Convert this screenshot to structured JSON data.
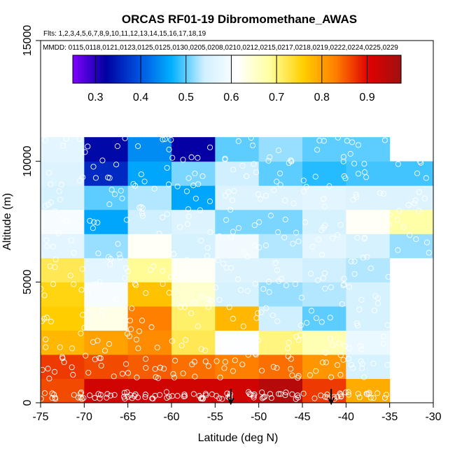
{
  "chart_data": {
    "type": "heatmap",
    "title": "ORCAS RF01-19 Dibromomethane_AWAS",
    "flights_text": "Flts: 1,2,3,4,5,6,7,8,9,10,11,12,13,14,15,16,17,18,19",
    "mmdd_text": "MMDD: 0115,0118,0121,0123,0125,0125,0130,0205,0208,0210,0212,0215,0217,0218,0219,0222,0224,0225,0229",
    "xlabel": "Latitude (deg N)",
    "ylabel": "Altitude (m)",
    "xlim": [
      -75,
      -30
    ],
    "ylim": [
      0,
      15000
    ],
    "x_ticks": [
      -75,
      -70,
      -65,
      -60,
      -55,
      -50,
      -45,
      -40,
      -35,
      -30
    ],
    "y_ticks": [
      0,
      5000,
      10000,
      15000
    ],
    "colorbar": {
      "range": [
        0.25,
        0.975
      ],
      "ticks": [
        0.3,
        0.4,
        0.5,
        0.6,
        0.7,
        0.8,
        0.9
      ],
      "colors": [
        "#8000ff",
        "#0000a0",
        "#0050e0",
        "#00b0ff",
        "#d0f0ff",
        "#ffffff",
        "#ffffa0",
        "#ffd000",
        "#ff8000",
        "#e00000",
        "#a01010"
      ]
    },
    "lat_bins": [
      -75,
      -70,
      -65,
      -60,
      -55,
      -50,
      -45,
      -40,
      -35,
      -30
    ],
    "alt_bins": [
      0,
      1000,
      2000,
      3000,
      4000,
      5000,
      6000,
      7000,
      8000,
      9000,
      10000,
      11000,
      12000
    ],
    "cells": [
      [
        0.86,
        0.92,
        0.92,
        0.92,
        0.92,
        0.95,
        0.87,
        0.79,
        null
      ],
      [
        0.87,
        0.86,
        0.85,
        0.84,
        0.83,
        0.84,
        0.81,
        0.55,
        null
      ],
      [
        0.78,
        0.8,
        0.82,
        0.72,
        0.61,
        0.7,
        0.67,
        0.58,
        null
      ],
      [
        0.76,
        0.63,
        0.83,
        0.71,
        0.78,
        0.54,
        0.5,
        0.55,
        null
      ],
      [
        0.75,
        0.6,
        0.77,
        0.65,
        0.55,
        0.52,
        0.53,
        0.55,
        null
      ],
      [
        0.72,
        0.57,
        0.69,
        0.62,
        0.56,
        0.56,
        0.54,
        0.53,
        null
      ],
      [
        0.57,
        0.52,
        0.62,
        0.55,
        0.59,
        0.53,
        0.57,
        0.55,
        0.52
      ],
      [
        0.6,
        0.46,
        0.54,
        0.56,
        0.51,
        0.51,
        0.55,
        0.62,
        0.68
      ],
      [
        0.55,
        0.5,
        0.53,
        0.46,
        0.56,
        0.56,
        0.57,
        0.56,
        0.56
      ],
      [
        0.56,
        0.36,
        0.46,
        0.51,
        0.54,
        0.5,
        0.48,
        0.49,
        0.49
      ],
      [
        0.57,
        0.33,
        0.44,
        0.32,
        0.5,
        0.52,
        0.5,
        0.5,
        null
      ]
    ],
    "markers_lat": [
      -53.2,
      -41.7
    ]
  }
}
